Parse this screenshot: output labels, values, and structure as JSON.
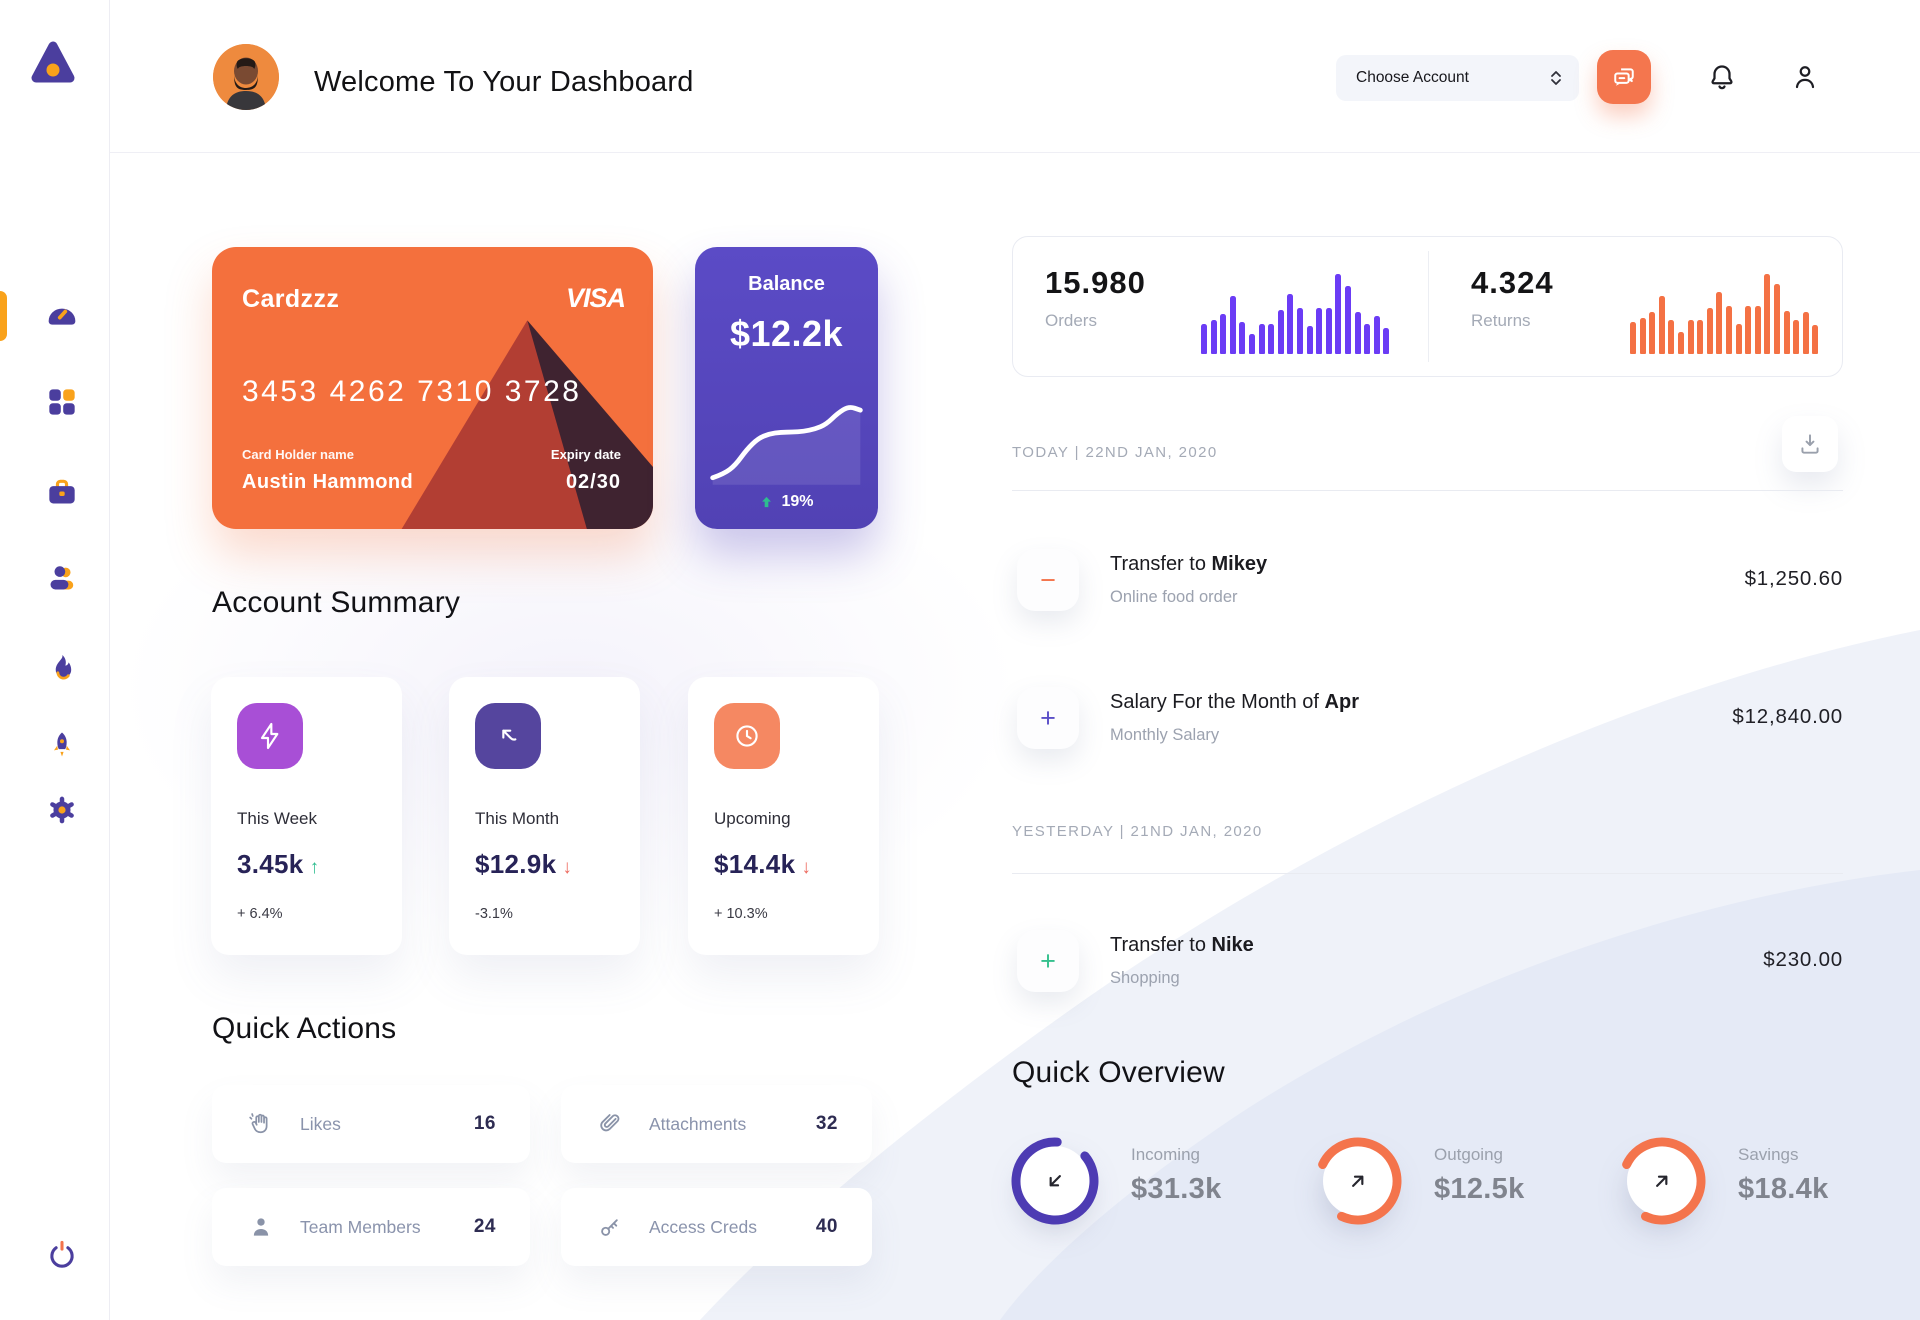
{
  "header": {
    "title": "Welcome To Your Dashboard",
    "account_selector": "Choose Account"
  },
  "sidebar": {
    "items": [
      "dashboard",
      "apps",
      "briefcase",
      "team",
      "activity",
      "launch",
      "settings"
    ],
    "active_index": 0
  },
  "card": {
    "name": "Cardzzz",
    "brand": "VISA",
    "number": "3453 4262 7310 3728",
    "holder_label": "Card Holder name",
    "holder": "Austin Hammond",
    "expiry_label": "Expiry date",
    "expiry": "02/30"
  },
  "balance": {
    "label": "Balance",
    "amount": "$12.2k",
    "change": "19%"
  },
  "account_summary": {
    "title": "Account Summary",
    "cards": [
      {
        "label": "This Week",
        "value": "3.45k",
        "arrow": "↑",
        "arrow_color": "#2EBD8F",
        "change": "+ 6.4%",
        "icon": "bolt",
        "icon_bg": "#A84FD6"
      },
      {
        "label": "This Month",
        "value": "$12.9k",
        "arrow": "↓",
        "arrow_color": "#ED6A5F",
        "change": "-3.1%",
        "icon": "trend",
        "icon_bg": "#55459E"
      },
      {
        "label": "Upcoming",
        "value": "$14.4k",
        "arrow": "↓",
        "arrow_color": "#ED6A5F",
        "change": "+ 10.3%",
        "icon": "clock",
        "icon_bg": "#F58862"
      }
    ]
  },
  "quick_actions": {
    "title": "Quick Actions",
    "items": [
      {
        "label": "Likes",
        "count": "16",
        "icon": "clap"
      },
      {
        "label": "Attachments",
        "count": "32",
        "icon": "paperclip"
      },
      {
        "label": "Team Members",
        "count": "24",
        "icon": "person"
      },
      {
        "label": "Access Creds",
        "count": "40",
        "icon": "key"
      }
    ]
  },
  "stats": {
    "orders": {
      "value": "15.980",
      "label": "Orders"
    },
    "returns": {
      "value": "4.324",
      "label": "Returns"
    }
  },
  "chart_data": [
    {
      "type": "bar",
      "name": "orders-mini-bars",
      "color": "#6B3CF5",
      "values": [
        38,
        42,
        50,
        72,
        40,
        25,
        38,
        38,
        55,
        75,
        58,
        35,
        58,
        58,
        100,
        85,
        52,
        38,
        48,
        32
      ]
    },
    {
      "type": "bar",
      "name": "returns-mini-bars",
      "color": "#F47144",
      "values": [
        40,
        45,
        52,
        72,
        42,
        27,
        42,
        42,
        58,
        78,
        60,
        38,
        60,
        60,
        100,
        88,
        54,
        42,
        52,
        36
      ]
    },
    {
      "type": "line",
      "name": "balance-trend",
      "color": "#FFFFFF",
      "points": [
        4,
        9,
        20,
        40,
        54,
        60,
        62,
        62,
        63,
        66,
        72,
        86,
        95,
        90
      ]
    }
  ],
  "transactions": {
    "groups": [
      {
        "heading": "TODAY | 22ND JAN, 2020",
        "rows": [
          {
            "prefix": "Transfer to ",
            "name": "Mikey",
            "subtitle": "Online food order",
            "amount": "$1,250.60",
            "icon": "−",
            "icon_color": "#F4744C"
          },
          {
            "prefix": "Salary For the Month of ",
            "name": "Apr",
            "subtitle": "Monthly Salary",
            "amount": "$12,840.00",
            "icon": "+",
            "icon_color": "#5B4FC8"
          }
        ]
      },
      {
        "heading": "YESTERDAY | 21ND JAN, 2020",
        "rows": [
          {
            "prefix": "Transfer to ",
            "name": "Nike",
            "subtitle": "Shopping",
            "amount": "$230.00",
            "icon": "+",
            "icon_color": "#35C08E"
          }
        ]
      }
    ]
  },
  "quick_overview": {
    "title": "Quick Overview",
    "items": [
      {
        "label": "Incoming",
        "value": "$31.3k",
        "arrow": "down-left",
        "ring": {
          "progress": 87,
          "rotate": -40,
          "color": "#4D3BB3"
        }
      },
      {
        "label": "Outgoing",
        "value": "$12.5k",
        "arrow": "up-right",
        "ring": {
          "progress": 75,
          "rotate": 205,
          "color": "#F4744C"
        }
      },
      {
        "label": "Savings",
        "value": "$18.4k",
        "arrow": "up-right",
        "ring": {
          "progress": 75,
          "rotate": 205,
          "color": "#F4744C"
        }
      }
    ]
  },
  "colors": {
    "accent_orange": "#F4703D",
    "purple": "#5748C0",
    "sidebar_purple": "#4B3E9E",
    "sidebar_orange": "#F9A21B",
    "green": "#2EBD8F",
    "red": "#ED6A5F"
  }
}
